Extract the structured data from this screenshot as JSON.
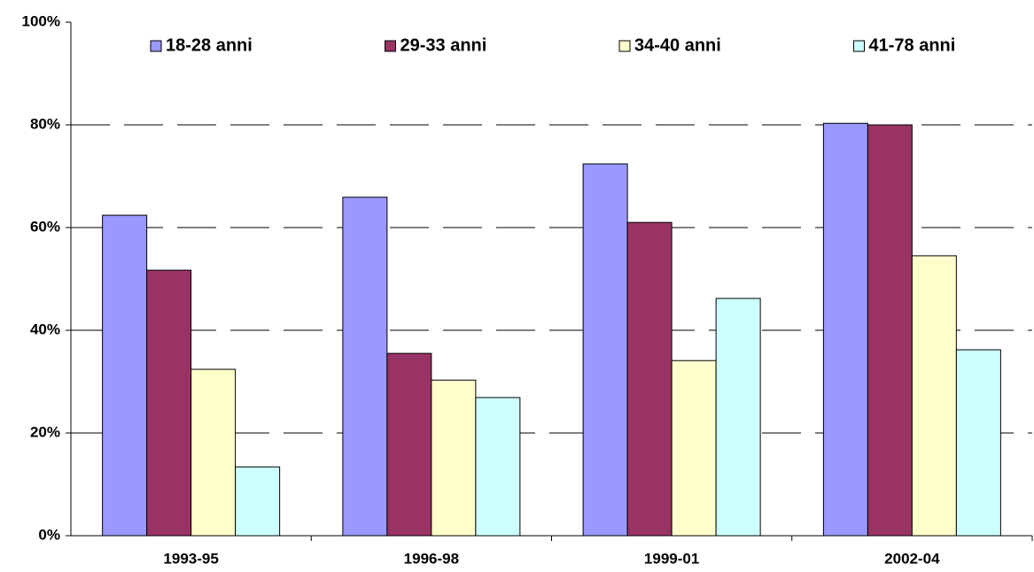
{
  "chart_data": {
    "type": "bar",
    "categories": [
      "1993-95",
      "1996-98",
      "1999-01",
      "2002-04"
    ],
    "series": [
      {
        "name": "18-28 anni",
        "color": "#9999ff",
        "values": [
          62.4,
          65.9,
          72.4,
          80.3
        ]
      },
      {
        "name": "29-33 anni",
        "color": "#993366",
        "values": [
          51.7,
          35.5,
          61.0,
          80.0
        ]
      },
      {
        "name": "34-40 anni",
        "color": "#ffffcc",
        "values": [
          32.4,
          30.3,
          34.1,
          54.5
        ]
      },
      {
        "name": "41-78 anni",
        "color": "#ccffff",
        "values": [
          13.4,
          26.9,
          46.2,
          36.2
        ]
      }
    ],
    "ylim": [
      0,
      100
    ],
    "yticks": [
      {
        "value": 0,
        "label": "0%"
      },
      {
        "value": 20,
        "label": "20%"
      },
      {
        "value": 40,
        "label": "40%"
      },
      {
        "value": 60,
        "label": "60%"
      },
      {
        "value": 80,
        "label": "80%"
      },
      {
        "value": 100,
        "label": "100%"
      }
    ],
    "grid": true,
    "legend": "top"
  }
}
